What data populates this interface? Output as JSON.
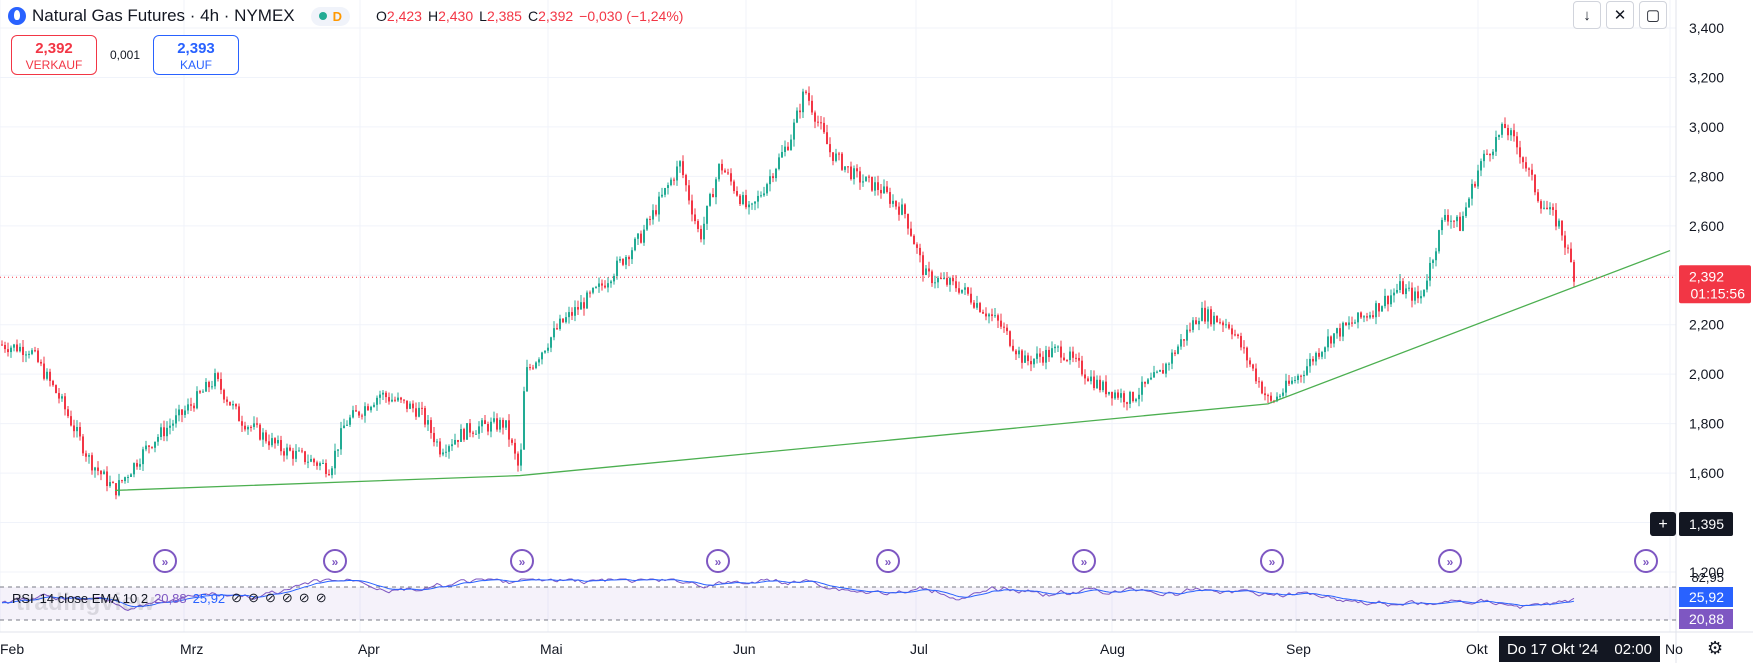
{
  "header": {
    "symbol_title": "Natural Gas Futures · 4h · NYMEX",
    "market_status_letter": "D",
    "ohlc": [
      {
        "key": "O",
        "value": "2,423"
      },
      {
        "key": "H",
        "value": "2,430"
      },
      {
        "key": "L",
        "value": "2,385"
      },
      {
        "key": "C",
        "value": "2,392"
      },
      {
        "key": "",
        "value": "−0,030 (−1,24%)"
      }
    ]
  },
  "trade": {
    "sell_price": "2,392",
    "sell_label": "VERKAUF",
    "spread": "0,001",
    "buy_price": "2,393",
    "buy_label": "KAUF"
  },
  "toolbar": {
    "icons": [
      "arrow-down-icon",
      "collapse-icon",
      "fullscreen-icon"
    ]
  },
  "price_axis": {
    "ticks": [
      "3,400",
      "3,200",
      "3,000",
      "2,800",
      "2,600",
      "2,400",
      "2,200",
      "2,000",
      "1,800",
      "1,600",
      "1,400",
      "1,200"
    ],
    "current_price": "2,392",
    "countdown": "01:15:56",
    "crosshair_price": "1,395"
  },
  "time_axis": {
    "labels": [
      "Feb",
      "Mrz",
      "Apr",
      "Mai",
      "Jun",
      "Jul",
      "Aug",
      "Sep",
      "Okt",
      "No"
    ],
    "crosshair_date": "Do 17 Okt '24",
    "crosshair_time": "02:00"
  },
  "rsi": {
    "label": "RSI",
    "params": "14 close EMA 10 2",
    "value_ma": "20,88",
    "value_rsi": "25,92",
    "axis_top": "82,95",
    "rsi_color": "#7e57c2",
    "ma_color": "#2962ff"
  },
  "colors": {
    "up": "#22ab94",
    "down": "#f23645",
    "trendline": "#4caf50",
    "brand": "#2962ff"
  },
  "watermark": "tradingview",
  "chart_data": {
    "type": "candlestick",
    "title": "Natural Gas Futures · 4h · NYMEX",
    "ylim": [
      1.2,
      3.4
    ],
    "x_labels": [
      "Feb",
      "Mrz",
      "Apr",
      "Mai",
      "Jun",
      "Jul",
      "Aug",
      "Sep",
      "Okt"
    ],
    "close_path_by_x_label": {
      "early_Feb": 2.12,
      "late_Feb_low": 1.53,
      "early_Mrz": 1.95,
      "Apr": 1.9,
      "late_Apr_low": 1.6,
      "early_Mai": 2.0,
      "late_Mai": 2.8,
      "mid_Jun_high": 3.15,
      "early_Jul": 2.45,
      "Aug_low": 1.9,
      "mid_Aug": 2.25,
      "late_Aug_low": 1.88,
      "late_Sep": 2.65,
      "early_Okt_high": 3.02,
      "last": 2.392
    },
    "trendline": [
      {
        "point": "late_Feb_low",
        "price": 1.53
      },
      {
        "point": "late_Apr",
        "price": 1.59
      },
      {
        "point": "late_Aug",
        "price": 1.88
      },
      {
        "point": "Nov",
        "price": 2.5
      }
    ],
    "rsi_ylim": [
      0,
      100
    ],
    "grid": true
  }
}
